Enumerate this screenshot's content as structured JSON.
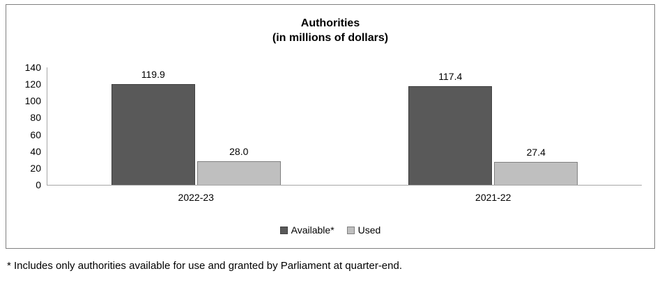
{
  "chart": {
    "title_line1": "Authorities",
    "title_line2": "(in millions of dollars)"
  },
  "chart_data": {
    "type": "bar",
    "title": "Authorities (in millions of dollars)",
    "categories": [
      "2022-23",
      "2021-22"
    ],
    "series": [
      {
        "name": "Available*",
        "values": [
          119.9,
          117.4
        ],
        "labels": [
          "119.9",
          "117.4"
        ],
        "color": "#595959",
        "border_color": "#404040"
      },
      {
        "name": "Used",
        "values": [
          28.0,
          27.4
        ],
        "labels": [
          "28.0",
          "27.4"
        ],
        "color": "#bfbfbf",
        "border_color": "#808080"
      }
    ],
    "xlabel": "",
    "ylabel": "",
    "ylim": [
      0,
      140
    ],
    "yticks": [
      0,
      20,
      40,
      60,
      80,
      100,
      120,
      140
    ],
    "grid": false,
    "legend_position": "bottom"
  },
  "footnote": "* Includes only authorities available for use and granted by Parliament at quarter-end."
}
